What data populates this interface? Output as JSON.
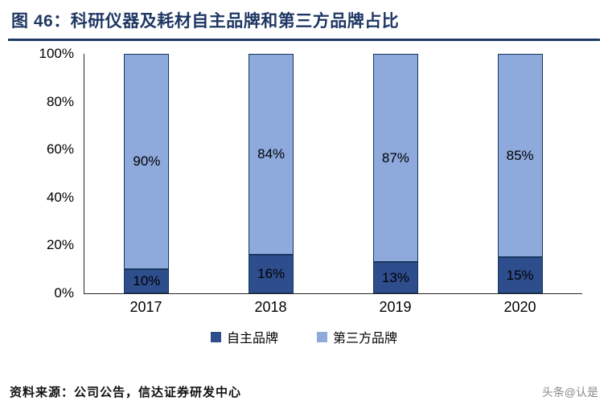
{
  "header": {
    "title": "图 46：科研仪器及耗材自主品牌和第三方品牌占比"
  },
  "chart_data": {
    "type": "bar",
    "stacked": true,
    "percent_stacked": true,
    "categories": [
      "2017",
      "2018",
      "2019",
      "2020"
    ],
    "series": [
      {
        "name": "自主品牌",
        "color": "#2E4D8C",
        "values": [
          10,
          16,
          13,
          15
        ]
      },
      {
        "name": "第三方品牌",
        "color": "#8EA9DB",
        "values": [
          90,
          84,
          87,
          85
        ]
      }
    ],
    "bar_labels": [
      "10%",
      "16%",
      "13%",
      "15%",
      "90%",
      "84%",
      "87%",
      "85%"
    ],
    "ylim": [
      0,
      100
    ],
    "yticks": [
      "0%",
      "20%",
      "40%",
      "60%",
      "80%",
      "100%"
    ],
    "grid": false,
    "legend_position": "bottom",
    "title": "图 46：科研仪器及耗材自主品牌和第三方品牌占比",
    "xlabel": "",
    "ylabel": ""
  },
  "footer": {
    "source": "资料来源：公司公告，信达证券研发中心",
    "watermark": "头条@认是"
  },
  "colors": {
    "title": "#1F3864",
    "accent_rule": "#1F3864",
    "own_brand": "#2E4D8C",
    "third_party": "#8EA9DB",
    "bar_border": "#17375E"
  }
}
